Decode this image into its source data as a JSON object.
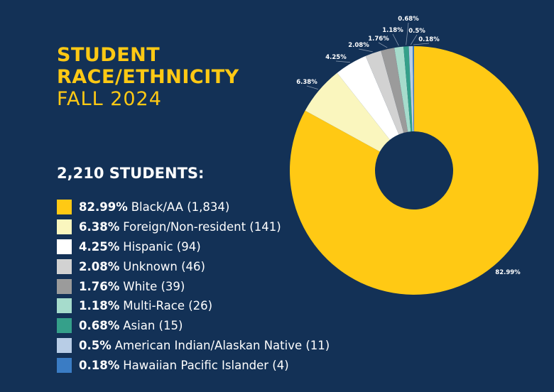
{
  "title": {
    "line1": "STUDENT",
    "line2": "RACE/ETHNICITY",
    "line3": "FALL 2024"
  },
  "total_label": "2,210 STUDENTS:",
  "chart_data": {
    "type": "pie",
    "donut": true,
    "start": "top, clockwise",
    "slices": [
      {
        "pct": 82.99,
        "pct_label": "82.99%",
        "label": "Black/AA (1,834)",
        "count": 1834,
        "color": "#ffc914"
      },
      {
        "pct": 6.38,
        "pct_label": "6.38%",
        "label": "Foreign/Non-resident (141)",
        "count": 141,
        "color": "#faf6be"
      },
      {
        "pct": 4.25,
        "pct_label": "4.25%",
        "label": "Hispanic (94)",
        "count": 94,
        "color": "#ffffff"
      },
      {
        "pct": 2.08,
        "pct_label": "2.08%",
        "label": "Unknown (46)",
        "count": 46,
        "color": "#d2d2d2"
      },
      {
        "pct": 1.76,
        "pct_label": "1.76%",
        "label": "White (39)",
        "count": 39,
        "color": "#9b9b9b"
      },
      {
        "pct": 1.18,
        "pct_label": "1.18%",
        "label": "Multi-Race (26)",
        "count": 26,
        "color": "#a6dccc"
      },
      {
        "pct": 0.68,
        "pct_label": "0.68%",
        "label": "Asian (15)",
        "count": 15,
        "color": "#35a08a"
      },
      {
        "pct": 0.5,
        "pct_label": "0.5%",
        "label": "American Indian/Alaskan Native (11)",
        "count": 11,
        "color": "#b8cde6"
      },
      {
        "pct": 0.18,
        "pct_label": "0.18%",
        "label": "Hawaiian Pacific Islander (4)",
        "count": 4,
        "color": "#3a7cc4"
      }
    ]
  }
}
